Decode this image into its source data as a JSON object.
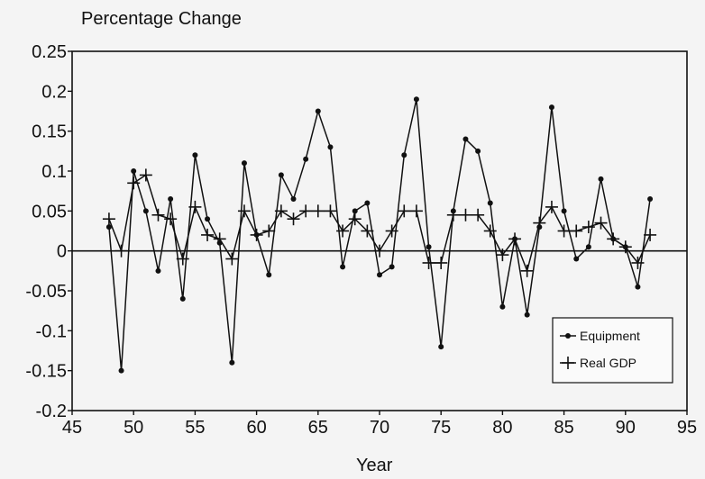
{
  "chart_data": {
    "type": "line",
    "title": "",
    "xlabel": "Year",
    "ylabel": "Percentage Change",
    "xlim": [
      45,
      95
    ],
    "ylim": [
      -0.2,
      0.25
    ],
    "xticks": [
      45,
      50,
      55,
      60,
      65,
      70,
      75,
      80,
      85,
      90,
      95
    ],
    "xtick_labels": [
      "45",
      "50",
      "55",
      "60",
      "65",
      "70",
      "75",
      "80",
      "85",
      "90",
      "95"
    ],
    "yticks": [
      -0.2,
      -0.15,
      -0.1,
      -0.05,
      0,
      0.05,
      0.1,
      0.15,
      0.2,
      0.25
    ],
    "ytick_labels": [
      "-0.2",
      "-0.15",
      "-0.1",
      "-0.05",
      "0",
      "0.05",
      "0.1",
      "0.15",
      "0.2",
      "0.25"
    ],
    "grid": false,
    "zero_line": true,
    "legend_position": "bottom-right",
    "x": [
      48,
      49,
      50,
      51,
      52,
      53,
      54,
      55,
      56,
      57,
      58,
      59,
      60,
      61,
      62,
      63,
      64,
      65,
      66,
      67,
      68,
      69,
      70,
      71,
      72,
      73,
      74,
      75,
      76,
      77,
      78,
      79,
      80,
      81,
      82,
      83,
      84,
      85,
      86,
      87,
      88,
      89,
      90,
      91,
      92
    ],
    "series": [
      {
        "name": "Equipment",
        "marker": "dot",
        "values": [
          0.03,
          -0.15,
          0.1,
          0.05,
          -0.025,
          0.065,
          -0.06,
          0.12,
          0.04,
          0.01,
          -0.14,
          0.11,
          0.02,
          -0.03,
          0.095,
          0.065,
          0.115,
          0.175,
          0.13,
          -0.02,
          0.05,
          0.06,
          -0.03,
          -0.02,
          0.12,
          0.19,
          0.005,
          -0.12,
          0.05,
          0.14,
          0.125,
          0.06,
          -0.07,
          0.015,
          -0.08,
          0.03,
          0.18,
          0.05,
          -0.01,
          0.005,
          0.09,
          0.015,
          0.005,
          -0.045,
          0.065
        ]
      },
      {
        "name": "Real GDP",
        "marker": "plus",
        "values": [
          0.04,
          0.0,
          0.085,
          0.095,
          0.045,
          0.04,
          -0.01,
          0.055,
          0.02,
          0.015,
          -0.01,
          0.05,
          0.02,
          0.025,
          0.05,
          0.04,
          0.05,
          0.05,
          0.05,
          0.025,
          0.04,
          0.025,
          0.0,
          0.025,
          0.05,
          0.05,
          -0.015,
          -0.015,
          0.045,
          0.045,
          0.045,
          0.025,
          -0.005,
          0.015,
          -0.025,
          0.035,
          0.055,
          0.025,
          0.025,
          0.03,
          0.035,
          0.015,
          0.005,
          -0.015,
          0.02
        ]
      }
    ]
  }
}
